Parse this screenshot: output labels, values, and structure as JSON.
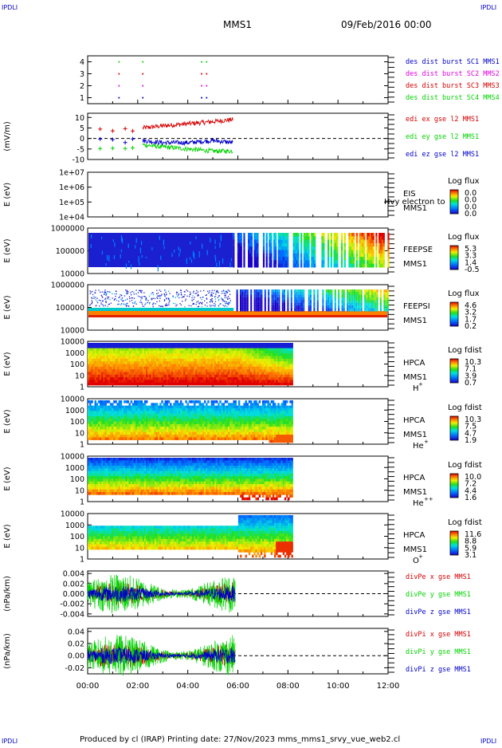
{
  "header": {
    "corner_tl": "IPDLI",
    "corner_tr": "IPDLI",
    "corner_bl": "IPDLI",
    "corner_br": "IPDLI",
    "spacecraft": "MMS1",
    "date": "09/Feb/2016 00:00"
  },
  "footer": {
    "text": "Produced by cl (IRAP)   Printing date: 27/Nov/2023   mms_mms1_srvy_vue_web2.cl"
  },
  "colors": {
    "red": "#d40000",
    "green": "#00d400",
    "blue": "#0000c8",
    "magenta": "#e000e0",
    "dashed_zero": "#000000"
  },
  "chart_data": [
    {
      "type": "scatter",
      "ylabel": "",
      "yticks": [
        "1",
        "2",
        "3",
        "4"
      ],
      "ylim": [
        0.5,
        4.5
      ],
      "xlim": [
        0,
        12
      ],
      "legend": [
        {
          "text": "des dist burst SC1 MMS1",
          "color": "#0000c8"
        },
        {
          "text": "des dist burst SC2 MMS2",
          "color": "#e000e0"
        },
        {
          "text": "des dist burst SC3 MMS3",
          "color": "#d40000"
        },
        {
          "text": "des dist burst SC4 MMS4",
          "color": "#00d400"
        }
      ],
      "series": [
        {
          "name": "SC4",
          "y": 4,
          "x": [
            1.25,
            2.2,
            4.55,
            4.75
          ]
        },
        {
          "name": "SC3",
          "y": 3,
          "x": [
            1.25,
            2.2,
            4.55,
            4.75
          ]
        },
        {
          "name": "SC2",
          "y": 2,
          "x": [
            1.25,
            2.2,
            4.55,
            4.75
          ]
        },
        {
          "name": "SC1",
          "y": 1,
          "x": [
            1.25,
            2.2,
            4.55,
            4.75
          ]
        }
      ]
    },
    {
      "type": "line",
      "ylabel": "(mV/m)",
      "yticks": [
        "10",
        "5",
        "0",
        "-5",
        "-10"
      ],
      "ylim": [
        -10,
        12
      ],
      "xlim": [
        0,
        12
      ],
      "legend": [
        {
          "text": "edi ex gse l2 MMS1",
          "color": "#d40000"
        },
        {
          "text": "edi ey gse l2 MMS1",
          "color": "#00d400"
        },
        {
          "text": "edi ez gse l2 MMS1",
          "color": "#0000c8"
        }
      ],
      "series": [
        {
          "name": "ex",
          "x": [
            0.5,
            1.0,
            1.5,
            2.2,
            3.0,
            4.0,
            5.0,
            5.8
          ],
          "y": [
            4,
            3,
            2,
            5,
            6,
            7,
            8,
            9
          ]
        },
        {
          "name": "ey",
          "x": [
            0.5,
            1.0,
            1.5,
            2.2,
            3.0,
            4.0,
            5.0,
            5.8
          ],
          "y": [
            -4,
            -5,
            -5,
            -3,
            -4,
            -5,
            -6,
            -6
          ]
        },
        {
          "name": "ez",
          "x": [
            0.5,
            1.0,
            1.5,
            2.2,
            3.0,
            4.0,
            5.0,
            5.8
          ],
          "y": [
            -1,
            -2,
            -1,
            -1,
            -2,
            -2,
            -1,
            -2
          ]
        }
      ]
    },
    {
      "type": "heatmap",
      "ylabel": "E (eV)",
      "yticks": [
        "1e+07",
        "1e+06",
        "1e+05",
        "1e+04"
      ],
      "xlim": [
        0,
        12
      ],
      "label": "EIS",
      "label2": "MMS1",
      "overlay": "Hvy electron to",
      "colorbar_title": "Log flux",
      "colorbar_ticks": [
        "0.0",
        "0.0",
        "0.0",
        "0.0"
      ]
    },
    {
      "type": "heatmap",
      "ylabel": "E (eV)",
      "yticks": [
        "1000000",
        "100000",
        "10000"
      ],
      "xlim": [
        0,
        12
      ],
      "label": "FEEPSE",
      "label2": "MMS1",
      "colorbar_title": "Log flux",
      "colorbar_ticks": [
        "5.3",
        "3.3",
        "1.4",
        "-0.5"
      ]
    },
    {
      "type": "heatmap",
      "ylabel": "E (eV)",
      "yticks": [
        "1000000",
        "100000",
        "10000"
      ],
      "xlim": [
        0,
        12
      ],
      "label": "FEEPSI",
      "label2": "MMS1",
      "colorbar_title": "Log flux",
      "colorbar_ticks": [
        "4.6",
        "3.2",
        "1.7",
        "0.2"
      ]
    },
    {
      "type": "heatmap",
      "ylabel": "E (eV)",
      "yticks": [
        "10000",
        "1000",
        "100",
        "10",
        "1"
      ],
      "xlim": [
        0,
        12
      ],
      "label": "HPCA",
      "label2": "MMS1",
      "species": "H",
      "charge": "+",
      "colorbar_title": "Log fdist",
      "colorbar_ticks": [
        "10.3",
        "7.1",
        "3.9",
        "0.7"
      ]
    },
    {
      "type": "heatmap",
      "ylabel": "E (eV)",
      "yticks": [
        "10000",
        "1000",
        "100",
        "10",
        "1"
      ],
      "xlim": [
        0,
        12
      ],
      "label": "HPCA",
      "label2": "MMS1",
      "species": "He",
      "charge": "+",
      "colorbar_title": "Log fdist",
      "colorbar_ticks": [
        "10.3",
        "7.5",
        "4.7",
        "1.9"
      ]
    },
    {
      "type": "heatmap",
      "ylabel": "E (eV)",
      "yticks": [
        "10000",
        "1000",
        "100",
        "10",
        "1"
      ],
      "xlim": [
        0,
        12
      ],
      "label": "HPCA",
      "label2": "MMS1",
      "species": "He",
      "charge": "++",
      "colorbar_title": "Log fdist",
      "colorbar_ticks": [
        "10.0",
        "7.2",
        "4.4",
        "1.6"
      ]
    },
    {
      "type": "heatmap",
      "ylabel": "E (eV)",
      "yticks": [
        "10000",
        "1000",
        "100",
        "10",
        "1"
      ],
      "xlim": [
        0,
        12
      ],
      "label": "HPCA",
      "label2": "MMS1",
      "species": "O",
      "charge": "+",
      "colorbar_title": "Log fdist",
      "colorbar_ticks": [
        "11.6",
        "8.8",
        "5.9",
        "3.1"
      ]
    },
    {
      "type": "line",
      "ylabel": "(nPa/km)",
      "yticks": [
        "0.004",
        "0.002",
        "0.000",
        "-0.002",
        "-0.004"
      ],
      "ylim": [
        -0.0045,
        0.0045
      ],
      "xlim": [
        0,
        12
      ],
      "legend": [
        {
          "text": "divPe x gse MMS1",
          "color": "#d40000"
        },
        {
          "text": "divPe y gse MMS1",
          "color": "#00d400"
        },
        {
          "text": "divPe z gse MMS1",
          "color": "#0000c8"
        }
      ]
    },
    {
      "type": "line",
      "ylabel": "(nPa/km)",
      "yticks": [
        "0.04",
        "0.02",
        "0.00",
        "-0.02"
      ],
      "ylim": [
        -0.03,
        0.045
      ],
      "xlim": [
        0,
        12
      ],
      "legend": [
        {
          "text": "divPi x gse MMS1",
          "color": "#d40000"
        },
        {
          "text": "divPi y gse MMS1",
          "color": "#00d400"
        },
        {
          "text": "divPi z gse MMS1",
          "color": "#0000c8"
        }
      ]
    }
  ],
  "xaxis": {
    "ticks": [
      "00:00",
      "02:00",
      "04:00",
      "06:00",
      "08:00",
      "10:00",
      "12:00"
    ]
  }
}
